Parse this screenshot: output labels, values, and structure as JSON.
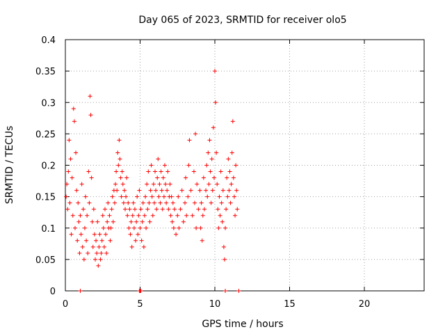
{
  "chart_data": {
    "type": "scatter",
    "title": "Day 065 of 2023, SRMTID for receiver olo5",
    "xlabel": "GPS time / hours",
    "ylabel": "SRMTID / TECUs",
    "xlim": [
      0,
      24
    ],
    "ylim": [
      0,
      0.4
    ],
    "xticks": [
      0,
      5,
      10,
      15,
      20
    ],
    "xtick_labels": [
      "0",
      "5",
      "10",
      "15",
      "20"
    ],
    "yticks": [
      0,
      0.05,
      0.1,
      0.15,
      0.2,
      0.25,
      0.3,
      0.35,
      0.4
    ],
    "ytick_labels": [
      "0",
      "0.05",
      "0.1",
      "0.15",
      "0.2",
      "0.25",
      "0.3",
      "0.35",
      "0.4"
    ],
    "grid": true,
    "legend": "none",
    "marker": "plus",
    "series": [
      {
        "name": "olo5",
        "color": "#ff0000",
        "points": [
          [
            0.05,
            0.15
          ],
          [
            0.1,
            0.17
          ],
          [
            0.15,
            0.13
          ],
          [
            0.2,
            0.19
          ],
          [
            0.25,
            0.24
          ],
          [
            0.3,
            0.14
          ],
          [
            0.35,
            0.21
          ],
          [
            0.4,
            0.09
          ],
          [
            0.45,
            0.18
          ],
          [
            0.5,
            0.12
          ],
          [
            0.55,
            0.29
          ],
          [
            0.6,
            0.27
          ],
          [
            0.65,
            0.1
          ],
          [
            0.7,
            0.22
          ],
          [
            0.75,
            0.16
          ],
          [
            0.8,
            0.08
          ],
          [
            0.85,
            0.14
          ],
          [
            0.9,
            0.11
          ],
          [
            0.95,
            0.06
          ],
          [
            1.0,
            0.12
          ],
          [
            1.05,
            0.09
          ],
          [
            1.1,
            0.17
          ],
          [
            1.15,
            0.07
          ],
          [
            1.2,
            0.13
          ],
          [
            1.25,
            0.05
          ],
          [
            1.3,
            0.1
          ],
          [
            1.35,
            0.15
          ],
          [
            1.4,
            0.08
          ],
          [
            1.45,
            0.12
          ],
          [
            1.5,
            0.06
          ],
          [
            1.55,
            0.19
          ],
          [
            1.6,
            0.14
          ],
          [
            1.65,
            0.31
          ],
          [
            1.7,
            0.28
          ],
          [
            1.75,
            0.18
          ],
          [
            1.8,
            0.11
          ],
          [
            1.85,
            0.07
          ],
          [
            1.9,
            0.13
          ],
          [
            1.95,
            0.09
          ],
          [
            2.0,
            0.05
          ],
          [
            2.05,
            0.08
          ],
          [
            2.1,
            0.06
          ],
          [
            2.15,
            0.11
          ],
          [
            2.2,
            0.04
          ],
          [
            2.25,
            0.07
          ],
          [
            2.3,
            0.09
          ],
          [
            2.35,
            0.05
          ],
          [
            2.4,
            0.06
          ],
          [
            2.45,
            0.08
          ],
          [
            2.5,
            0.12
          ],
          [
            2.55,
            0.1
          ],
          [
            2.6,
            0.07
          ],
          [
            2.65,
            0.13
          ],
          [
            2.7,
            0.09
          ],
          [
            2.75,
            0.06
          ],
          [
            2.8,
            0.11
          ],
          [
            2.85,
            0.14
          ],
          [
            2.9,
            0.1
          ],
          [
            2.95,
            0.12
          ],
          [
            3.0,
            0.08
          ],
          [
            3.05,
            0.1
          ],
          [
            3.1,
            0.13
          ],
          [
            3.15,
            0.15
          ],
          [
            3.2,
            0.11
          ],
          [
            3.25,
            0.16
          ],
          [
            3.3,
            0.14
          ],
          [
            3.35,
            0.17
          ],
          [
            3.4,
            0.19
          ],
          [
            3.45,
            0.16
          ],
          [
            3.5,
            0.22
          ],
          [
            3.55,
            0.2
          ],
          [
            3.6,
            0.24
          ],
          [
            3.65,
            0.21
          ],
          [
            3.7,
            0.18
          ],
          [
            3.75,
            0.15
          ],
          [
            3.8,
            0.19
          ],
          [
            3.85,
            0.17
          ],
          [
            3.9,
            0.14
          ],
          [
            3.95,
            0.16
          ],
          [
            4.0,
            0.13
          ],
          [
            4.05,
            0.15
          ],
          [
            4.1,
            0.18
          ],
          [
            4.15,
            0.12
          ],
          [
            4.2,
            0.14
          ],
          [
            4.25,
            0.1
          ],
          [
            4.3,
            0.13
          ],
          [
            4.35,
            0.09
          ],
          [
            4.4,
            0.11
          ],
          [
            4.45,
            0.07
          ],
          [
            4.5,
            0.12
          ],
          [
            4.55,
            0.14
          ],
          [
            4.6,
            0.1
          ],
          [
            4.65,
            0.13
          ],
          [
            4.7,
            0.08
          ],
          [
            4.75,
            0.11
          ],
          [
            4.8,
            0.15
          ],
          [
            4.85,
            0.09
          ],
          [
            4.9,
            0.12
          ],
          [
            4.95,
            0.16
          ],
          [
            5.0,
            0.1
          ],
          [
            5.05,
            0.13
          ],
          [
            5.1,
            0.08
          ],
          [
            5.15,
            0.11
          ],
          [
            5.2,
            0.14
          ],
          [
            5.25,
            0.07
          ],
          [
            5.3,
            0.12
          ],
          [
            5.35,
            0.15
          ],
          [
            5.4,
            0.1
          ],
          [
            5.45,
            0.17
          ],
          [
            5.5,
            0.13
          ],
          [
            5.55,
            0.19
          ],
          [
            5.6,
            0.14
          ],
          [
            5.65,
            0.11
          ],
          [
            5.7,
            0.16
          ],
          [
            5.75,
            0.2
          ],
          [
            5.8,
            0.15
          ],
          [
            5.85,
            0.12
          ],
          [
            5.9,
            0.17
          ],
          [
            5.95,
            0.14
          ],
          [
            6.0,
            0.19
          ],
          [
            6.05,
            0.16
          ],
          [
            6.1,
            0.13
          ],
          [
            6.15,
            0.18
          ],
          [
            6.2,
            0.21
          ],
          [
            6.25,
            0.15
          ],
          [
            6.3,
            0.17
          ],
          [
            6.35,
            0.14
          ],
          [
            6.4,
            0.19
          ],
          [
            6.45,
            0.16
          ],
          [
            6.5,
            0.13
          ],
          [
            6.55,
            0.18
          ],
          [
            6.6,
            0.15
          ],
          [
            6.65,
            0.2
          ],
          [
            6.7,
            0.17
          ],
          [
            6.75,
            0.14
          ],
          [
            6.8,
            0.16
          ],
          [
            6.85,
            0.19
          ],
          [
            6.9,
            0.13
          ],
          [
            6.95,
            0.15
          ],
          [
            7.0,
            0.17
          ],
          [
            7.05,
            0.12
          ],
          [
            7.1,
            0.15
          ],
          [
            7.15,
            0.11
          ],
          [
            7.2,
            0.14
          ],
          [
            7.25,
            0.1
          ],
          [
            7.3,
            0.13
          ],
          [
            7.4,
            0.09
          ],
          [
            7.5,
            0.12
          ],
          [
            7.55,
            0.15
          ],
          [
            7.6,
            0.1
          ],
          [
            7.7,
            0.13
          ],
          [
            7.8,
            0.16
          ],
          [
            7.9,
            0.11
          ],
          [
            8.0,
            0.14
          ],
          [
            8.05,
            0.18
          ],
          [
            8.1,
            0.12
          ],
          [
            8.2,
            0.15
          ],
          [
            8.25,
            0.2
          ],
          [
            8.3,
            0.24
          ],
          [
            8.4,
            0.16
          ],
          [
            8.5,
            0.12
          ],
          [
            8.6,
            0.19
          ],
          [
            8.65,
            0.14
          ],
          [
            8.7,
            0.25
          ],
          [
            8.75,
            0.1
          ],
          [
            8.8,
            0.17
          ],
          [
            8.9,
            0.13
          ],
          [
            9.0,
            0.16
          ],
          [
            9.05,
            0.1
          ],
          [
            9.1,
            0.14
          ],
          [
            9.15,
            0.08
          ],
          [
            9.2,
            0.12
          ],
          [
            9.25,
            0.18
          ],
          [
            9.3,
            0.13
          ],
          [
            9.4,
            0.16
          ],
          [
            9.45,
            0.2
          ],
          [
            9.5,
            0.15
          ],
          [
            9.55,
            0.22
          ],
          [
            9.6,
            0.17
          ],
          [
            9.65,
            0.24
          ],
          [
            9.7,
            0.19
          ],
          [
            9.75,
            0.14
          ],
          [
            9.8,
            0.21
          ],
          [
            9.85,
            0.16
          ],
          [
            9.9,
            0.26
          ],
          [
            9.95,
            0.18
          ],
          [
            10.0,
            0.35
          ],
          [
            10.05,
            0.3
          ],
          [
            10.1,
            0.22
          ],
          [
            10.15,
            0.17
          ],
          [
            10.2,
            0.13
          ],
          [
            10.25,
            0.1
          ],
          [
            10.3,
            0.15
          ],
          [
            10.35,
            0.12
          ],
          [
            10.4,
            0.19
          ],
          [
            10.45,
            0.14
          ],
          [
            10.5,
            0.11
          ],
          [
            10.55,
            0.16
          ],
          [
            10.6,
            0.07
          ],
          [
            10.65,
            0.05
          ],
          [
            10.7,
            0.1
          ],
          [
            10.75,
            0.13
          ],
          [
            10.8,
            0.18
          ],
          [
            10.85,
            0.15
          ],
          [
            10.9,
            0.21
          ],
          [
            10.95,
            0.16
          ],
          [
            11.0,
            0.19
          ],
          [
            11.05,
            0.14
          ],
          [
            11.1,
            0.17
          ],
          [
            11.15,
            0.22
          ],
          [
            11.2,
            0.27
          ],
          [
            11.25,
            0.18
          ],
          [
            11.3,
            0.15
          ],
          [
            11.35,
            0.12
          ],
          [
            11.4,
            0.2
          ],
          [
            11.45,
            0.16
          ],
          [
            11.5,
            0.13
          ],
          [
            1.0,
            0.0
          ],
          [
            4.95,
            0.0
          ],
          [
            5.0,
            0.0
          ],
          [
            5.05,
            0.0
          ],
          [
            10.7,
            0.0
          ],
          [
            11.6,
            0.0
          ]
        ]
      }
    ]
  }
}
